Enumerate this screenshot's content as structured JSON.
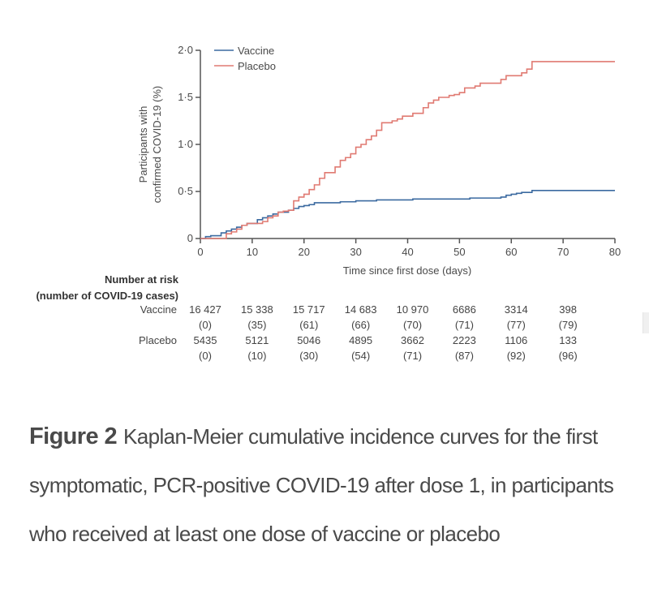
{
  "chart_data": {
    "type": "line",
    "step": true,
    "title": "",
    "xlabel": "Time since first dose (days)",
    "ylabel_lines": [
      "Participants with",
      "confirmed COVID-19 (%)"
    ],
    "xlim": [
      0,
      80
    ],
    "ylim": [
      0,
      2.0
    ],
    "x_ticks": [
      0,
      10,
      20,
      30,
      40,
      50,
      60,
      70,
      80
    ],
    "x_tick_labels": [
      "0",
      "10",
      "20",
      "30",
      "40",
      "50",
      "60",
      "70",
      "80"
    ],
    "y_ticks": [
      0,
      0.5,
      1.0,
      1.5,
      2.0
    ],
    "y_tick_labels": [
      "0",
      "0·5",
      "1·0",
      "1·5",
      "2·0"
    ],
    "grid": false,
    "legend_position": "top-left",
    "series": [
      {
        "name": "Vaccine",
        "color": "#3b6aa0",
        "x": [
          0,
          1,
          2,
          4,
          5,
          6,
          7,
          8,
          9,
          11,
          12,
          13,
          14,
          15,
          17,
          18,
          19,
          20,
          21,
          22,
          27,
          30,
          34,
          41,
          52,
          58,
          59,
          60,
          61,
          62,
          64,
          80
        ],
        "y": [
          0,
          0.02,
          0.03,
          0.06,
          0.08,
          0.1,
          0.12,
          0.14,
          0.16,
          0.2,
          0.22,
          0.24,
          0.26,
          0.28,
          0.3,
          0.32,
          0.34,
          0.35,
          0.36,
          0.38,
          0.39,
          0.4,
          0.41,
          0.42,
          0.43,
          0.44,
          0.46,
          0.47,
          0.48,
          0.49,
          0.51,
          0.51
        ]
      },
      {
        "name": "Placebo",
        "color": "#e07a72",
        "x": [
          0,
          5,
          6,
          7,
          8,
          9,
          11,
          12,
          13,
          14,
          15,
          16,
          17,
          18,
          19,
          20,
          21,
          22,
          23,
          24,
          26,
          27,
          28,
          29,
          30,
          31,
          32,
          33,
          34,
          35,
          37,
          38,
          39,
          41,
          43,
          44,
          45,
          46,
          48,
          49,
          50,
          51,
          53,
          54,
          58,
          59,
          62,
          63,
          64,
          80
        ],
        "y": [
          0,
          0.05,
          0.07,
          0.1,
          0.14,
          0.16,
          0.16,
          0.18,
          0.22,
          0.24,
          0.28,
          0.29,
          0.3,
          0.4,
          0.44,
          0.47,
          0.52,
          0.57,
          0.64,
          0.7,
          0.76,
          0.83,
          0.86,
          0.9,
          0.97,
          1.0,
          1.05,
          1.09,
          1.15,
          1.23,
          1.25,
          1.27,
          1.3,
          1.33,
          1.39,
          1.44,
          1.47,
          1.5,
          1.52,
          1.53,
          1.55,
          1.6,
          1.62,
          1.65,
          1.69,
          1.73,
          1.76,
          1.8,
          1.88,
          1.88
        ]
      }
    ]
  },
  "risk_table": {
    "title_line1": "Number at risk",
    "title_line2": "(number of COVID-19 cases)",
    "time_points": [
      0,
      10,
      20,
      30,
      40,
      50,
      60,
      70
    ],
    "rows": [
      {
        "label": "Vaccine",
        "at_risk": [
          "16 427",
          "15 338",
          "15 717",
          "14 683",
          "10 970",
          "6686",
          "3314",
          "398"
        ],
        "cases": [
          "(0)",
          "(35)",
          "(61)",
          "(66)",
          "(70)",
          "(71)",
          "(77)",
          "(79)"
        ]
      },
      {
        "label": "Placebo",
        "at_risk": [
          "5435",
          "5121",
          "5046",
          "4895",
          "3662",
          "2223",
          "1106",
          "133"
        ],
        "cases": [
          "(0)",
          "(10)",
          "(30)",
          "(54)",
          "(71)",
          "(87)",
          "(92)",
          "(96)"
        ]
      }
    ]
  },
  "caption": {
    "figure_label": "Figure 2",
    "text": "Kaplan-Meier cumulative incidence curves for the first symptomatic, PCR-positive COVID-19 after dose 1, in participants who received at least one dose of vaccine or placebo"
  }
}
